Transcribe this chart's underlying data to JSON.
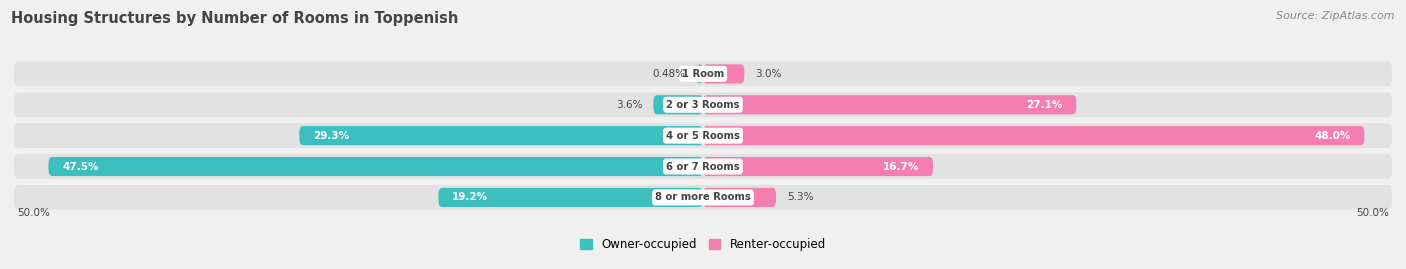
{
  "title": "Housing Structures by Number of Rooms in Toppenish",
  "source": "Source: ZipAtlas.com",
  "categories": [
    "1 Room",
    "2 or 3 Rooms",
    "4 or 5 Rooms",
    "6 or 7 Rooms",
    "8 or more Rooms"
  ],
  "owner_values": [
    0.48,
    3.6,
    29.3,
    47.5,
    19.2
  ],
  "renter_values": [
    3.0,
    27.1,
    48.0,
    16.7,
    5.3
  ],
  "owner_color": "#3dbfbf",
  "renter_color": "#f47eb0",
  "owner_label": "Owner-occupied",
  "renter_label": "Renter-occupied",
  "axis_max": 50.0,
  "axis_label_left": "50.0%",
  "axis_label_right": "50.0%",
  "background_color": "#f0f0f0",
  "row_bg_color": "#e2e2e2",
  "title_color": "#444444",
  "source_color": "#888888",
  "label_dark": "#444444",
  "label_white": "#ffffff",
  "center_label_bg": "#ffffff"
}
